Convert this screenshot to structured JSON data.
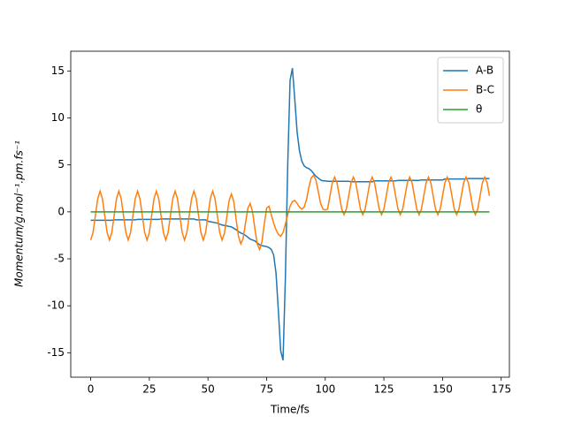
{
  "chart_data": {
    "type": "line",
    "xlabel": "Time/fs",
    "ylabel": "Momentum/g.mol⁻¹.pm.fs⁻¹",
    "xlim": [
      -8.5,
      178.5
    ],
    "ylim": [
      -17.6,
      17.1
    ],
    "xticks": [
      0,
      25,
      50,
      75,
      100,
      125,
      150,
      175
    ],
    "yticks": [
      -15,
      -10,
      -5,
      0,
      5,
      10,
      15
    ],
    "grid": false,
    "legend": "upper right",
    "x": [
      0,
      1,
      2,
      3,
      4,
      5,
      6,
      7,
      8,
      9,
      10,
      11,
      12,
      13,
      14,
      15,
      16,
      17,
      18,
      19,
      20,
      21,
      22,
      23,
      24,
      25,
      26,
      27,
      28,
      29,
      30,
      31,
      32,
      33,
      34,
      35,
      36,
      37,
      38,
      39,
      40,
      41,
      42,
      43,
      44,
      45,
      46,
      47,
      48,
      49,
      50,
      51,
      52,
      53,
      54,
      55,
      56,
      57,
      58,
      59,
      60,
      61,
      62,
      63,
      64,
      65,
      66,
      67,
      68,
      69,
      70,
      71,
      72,
      73,
      74,
      75,
      76,
      77,
      78,
      79,
      80,
      81,
      82,
      83,
      84,
      85,
      86,
      87,
      88,
      89,
      90,
      91,
      92,
      93,
      94,
      95,
      96,
      97,
      98,
      99,
      100,
      101,
      102,
      103,
      104,
      105,
      106,
      107,
      108,
      109,
      110,
      111,
      112,
      113,
      114,
      115,
      116,
      117,
      118,
      119,
      120,
      121,
      122,
      123,
      124,
      125,
      126,
      127,
      128,
      129,
      130,
      131,
      132,
      133,
      134,
      135,
      136,
      137,
      138,
      139,
      140,
      141,
      142,
      143,
      144,
      145,
      146,
      147,
      148,
      149,
      150,
      151,
      152,
      153,
      154,
      155,
      156,
      157,
      158,
      159,
      160,
      161,
      162,
      163,
      164,
      165,
      166,
      167,
      168,
      169,
      170
    ],
    "series": [
      {
        "name": "A-B",
        "color": "#1f77b4",
        "values": [
          -0.9,
          -0.9,
          -0.9,
          -0.9,
          -0.9,
          -0.9,
          -0.9,
          -0.9,
          -0.9,
          -0.9,
          -0.85,
          -0.85,
          -0.85,
          -0.85,
          -0.85,
          -0.85,
          -0.85,
          -0.85,
          -0.85,
          -0.85,
          -0.8,
          -0.8,
          -0.8,
          -0.8,
          -0.8,
          -0.8,
          -0.8,
          -0.8,
          -0.8,
          -0.8,
          -0.75,
          -0.75,
          -0.75,
          -0.75,
          -0.75,
          -0.75,
          -0.75,
          -0.75,
          -0.75,
          -0.75,
          -0.75,
          -0.75,
          -0.75,
          -0.75,
          -0.75,
          -0.85,
          -0.85,
          -0.85,
          -0.85,
          -0.85,
          -1.0,
          -1.05,
          -1.1,
          -1.15,
          -1.2,
          -1.3,
          -1.4,
          -1.45,
          -1.5,
          -1.55,
          -1.6,
          -1.75,
          -1.9,
          -2.1,
          -2.25,
          -2.35,
          -2.5,
          -2.7,
          -2.9,
          -3.0,
          -3.1,
          -3.3,
          -3.5,
          -3.6,
          -3.65,
          -3.7,
          -3.8,
          -4.0,
          -4.6,
          -6.5,
          -10.5,
          -14.8,
          -15.8,
          -7.0,
          5.0,
          14.0,
          15.3,
          12.0,
          8.5,
          6.5,
          5.4,
          4.9,
          4.7,
          4.6,
          4.4,
          4.1,
          3.8,
          3.6,
          3.4,
          3.3,
          3.3,
          3.25,
          3.25,
          3.25,
          3.25,
          3.25,
          3.25,
          3.25,
          3.25,
          3.25,
          3.25,
          3.2,
          3.2,
          3.2,
          3.2,
          3.2,
          3.2,
          3.2,
          3.2,
          3.2,
          3.2,
          3.3,
          3.3,
          3.3,
          3.3,
          3.3,
          3.3,
          3.3,
          3.3,
          3.3,
          3.3,
          3.35,
          3.35,
          3.35,
          3.35,
          3.35,
          3.35,
          3.35,
          3.35,
          3.35,
          3.35,
          3.4,
          3.4,
          3.4,
          3.4,
          3.4,
          3.4,
          3.4,
          3.4,
          3.4,
          3.4,
          3.5,
          3.5,
          3.5,
          3.5,
          3.5,
          3.5,
          3.5,
          3.5,
          3.5,
          3.5,
          3.55,
          3.55,
          3.55,
          3.55,
          3.55,
          3.55,
          3.55,
          3.55,
          3.55,
          3.55
        ]
      },
      {
        "name": "B-C",
        "color": "#ff7f0e",
        "values": [
          -3.0,
          -2.2,
          -0.4,
          1.4,
          2.2,
          1.4,
          -0.4,
          -2.2,
          -3.0,
          -2.2,
          -0.4,
          1.4,
          2.2,
          1.4,
          -0.4,
          -2.2,
          -3.0,
          -2.2,
          -0.4,
          1.4,
          2.2,
          1.4,
          -0.4,
          -2.2,
          -3.0,
          -2.2,
          -0.4,
          1.4,
          2.2,
          1.4,
          -0.4,
          -2.2,
          -3.0,
          -2.2,
          -0.4,
          1.4,
          2.2,
          1.4,
          -0.4,
          -2.2,
          -3.0,
          -2.2,
          -0.4,
          1.4,
          2.2,
          1.4,
          -0.4,
          -2.2,
          -3.0,
          -2.2,
          -0.4,
          1.4,
          2.2,
          1.4,
          -0.4,
          -2.2,
          -3.0,
          -2.3,
          -0.6,
          1.2,
          1.9,
          1.1,
          -0.8,
          -2.6,
          -3.4,
          -2.8,
          -1.2,
          0.4,
          0.9,
          0.0,
          -1.8,
          -3.4,
          -4.0,
          -3.2,
          -1.3,
          0.4,
          0.6,
          -0.3,
          -1.2,
          -1.9,
          -2.4,
          -2.6,
          -2.2,
          -1.3,
          -0.3,
          0.6,
          1.1,
          1.2,
          0.9,
          0.5,
          0.3,
          0.5,
          1.3,
          2.6,
          3.6,
          3.9,
          3.4,
          2.2,
          0.9,
          0.3,
          0.2,
          0.3,
          1.7,
          3.1,
          3.7,
          3.1,
          1.7,
          0.3,
          -0.3,
          0.3,
          1.7,
          3.1,
          3.7,
          3.1,
          1.7,
          0.3,
          -0.3,
          0.3,
          1.7,
          3.1,
          3.7,
          3.1,
          1.7,
          0.3,
          -0.3,
          0.3,
          1.7,
          3.1,
          3.7,
          3.1,
          1.7,
          0.3,
          -0.3,
          0.3,
          1.7,
          3.1,
          3.7,
          3.1,
          1.7,
          0.3,
          -0.3,
          0.3,
          1.7,
          3.1,
          3.7,
          3.1,
          1.7,
          0.3,
          -0.3,
          0.3,
          1.7,
          3.1,
          3.7,
          3.1,
          1.7,
          0.3,
          -0.3,
          0.3,
          1.7,
          3.1,
          3.7,
          3.1,
          1.7,
          0.3,
          -0.3,
          0.3,
          1.7,
          3.1,
          3.7,
          3.1,
          1.7
        ]
      },
      {
        "name": "θ",
        "color": "#2ca02c",
        "values": [
          0,
          0,
          0,
          0,
          0,
          0,
          0,
          0,
          0,
          0,
          0,
          0,
          0,
          0,
          0,
          0,
          0,
          0,
          0,
          0,
          0,
          0,
          0,
          0,
          0,
          0,
          0,
          0,
          0,
          0,
          0,
          0,
          0,
          0,
          0,
          0,
          0,
          0,
          0,
          0,
          0,
          0,
          0,
          0,
          0,
          0,
          0,
          0,
          0,
          0,
          0,
          0,
          0,
          0,
          0,
          0,
          0,
          0,
          0,
          0,
          0,
          0,
          0,
          0,
          0,
          0,
          0,
          0,
          0,
          0,
          0,
          0,
          0,
          0,
          0,
          0,
          0,
          0,
          0,
          0,
          0,
          0,
          0,
          0,
          0,
          0,
          0,
          0,
          0,
          0,
          0,
          0,
          0,
          0,
          0,
          0,
          0,
          0,
          0,
          0,
          0,
          0,
          0,
          0,
          0,
          0,
          0,
          0,
          0,
          0,
          0,
          0,
          0,
          0,
          0,
          0,
          0,
          0,
          0,
          0,
          0,
          0,
          0,
          0,
          0,
          0,
          0,
          0,
          0,
          0,
          0,
          0,
          0,
          0,
          0,
          0,
          0,
          0,
          0,
          0,
          0,
          0,
          0,
          0,
          0,
          0,
          0,
          0,
          0,
          0,
          0,
          0,
          0,
          0,
          0,
          0,
          0,
          0,
          0,
          0,
          0,
          0,
          0,
          0,
          0,
          0,
          0,
          0,
          0,
          0,
          0
        ]
      }
    ]
  }
}
